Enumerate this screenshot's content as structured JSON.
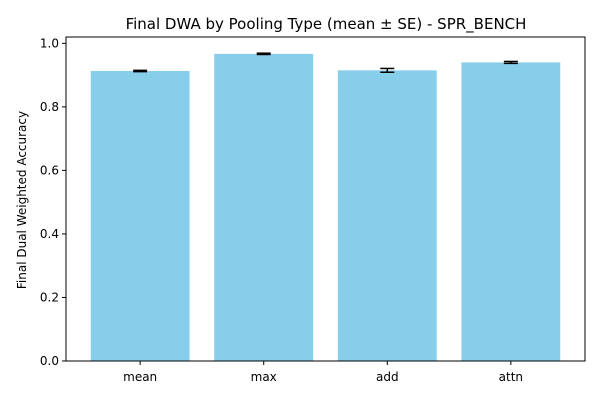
{
  "chart_data": {
    "type": "bar",
    "title": "Final DWA by Pooling Type (mean ± SE) - SPR_BENCH",
    "xlabel": "",
    "ylabel": "Final Dual Weighted Accuracy",
    "categories": [
      "mean",
      "max",
      "add",
      "attn"
    ],
    "values": [
      0.913,
      0.967,
      0.915,
      0.94
    ],
    "errors": [
      0.002,
      0.002,
      0.006,
      0.003
    ],
    "ylim": [
      0.0,
      1.02
    ],
    "yticks": [
      0.0,
      0.2,
      0.4,
      0.6,
      0.8,
      1.0
    ],
    "ytick_labels": [
      "0.0",
      "0.2",
      "0.4",
      "0.6",
      "0.8",
      "1.0"
    ],
    "grid": false,
    "legend": "none",
    "bar_color": "#87ceeb",
    "error_color": "#000000"
  }
}
